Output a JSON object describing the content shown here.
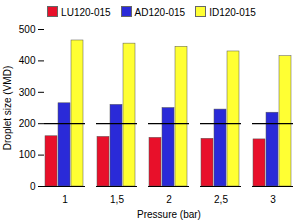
{
  "chart_data": {
    "type": "bar",
    "x_label": "Pressure (bar)",
    "y_label": "Droplet size (VMD)",
    "categories": [
      "1",
      "1,5",
      "2",
      "2,5",
      "3"
    ],
    "series": [
      {
        "name": "LU120-015",
        "color": "#e8102a",
        "values": [
          160,
          158,
          155,
          152,
          150
        ]
      },
      {
        "name": "AD120-015",
        "color": "#2a2ad8",
        "values": [
          265,
          260,
          250,
          245,
          235
        ]
      },
      {
        "name": "ID120-015",
        "color": "#ffff33",
        "values": [
          465,
          455,
          445,
          430,
          415
        ]
      }
    ],
    "hline": 200,
    "ylim": [
      0,
      500
    ],
    "yticks": [
      0,
      100,
      200,
      300,
      400,
      500
    ],
    "grid": false,
    "legend": "top"
  }
}
